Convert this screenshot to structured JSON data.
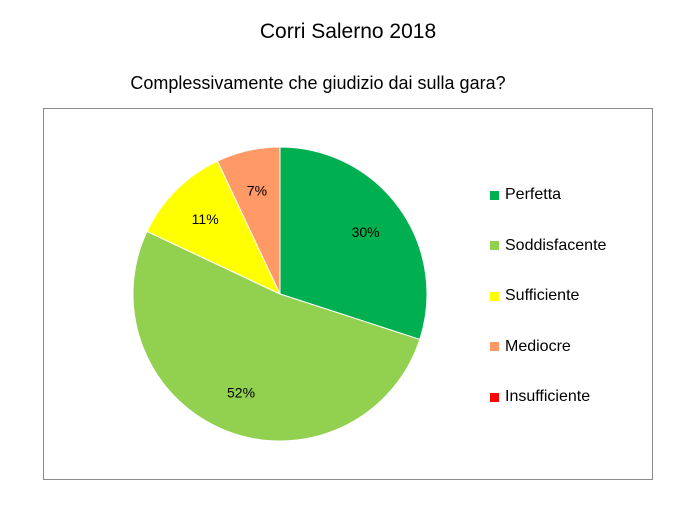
{
  "chart_data": {
    "type": "pie",
    "title": "Corri Salerno 2018",
    "subtitle": "Complessivamente che giudizio dai sulla gara?",
    "categories": [
      "Perfetta",
      "Soddisfacente",
      "Sufficiente",
      "Mediocre",
      "Insufficiente"
    ],
    "values": [
      30,
      52,
      11,
      7,
      0
    ],
    "labels": [
      "30%",
      "52%",
      "11%",
      "7%",
      ""
    ],
    "colors": [
      "#00B050",
      "#92D050",
      "#FFFF00",
      "#FF9966",
      "#FF0000"
    ],
    "legend_position": "right"
  }
}
